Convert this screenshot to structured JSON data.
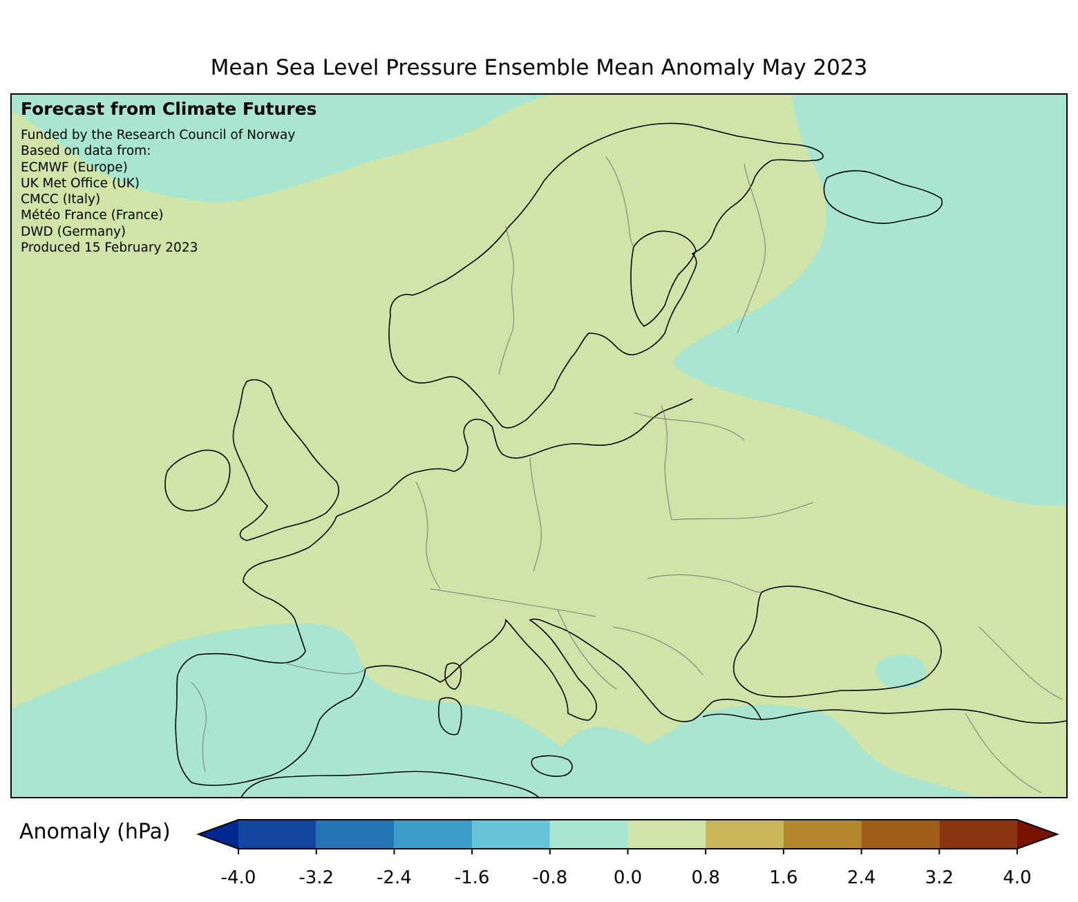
{
  "title": "Mean Sea Level Pressure Ensemble Mean Anomaly May 2023",
  "info_box": {
    "heading": "Forecast from Climate Futures",
    "lines": [
      "Funded by the Research Council of Norway",
      "Based on data from:",
      "ECMWF (Europe)",
      "UK Met Office (UK)",
      "CMCC (Italy)",
      "Météo France (France)",
      "DWD (Germany)",
      "Produced 15 February 2023"
    ]
  },
  "map": {
    "region": "Europe",
    "field": "Mean sea level pressure anomaly",
    "colors": {
      "land_background": "#d0e4a8",
      "anomaly_0_to_0_8": "#d0e4a8",
      "anomaly_neg0_8_to_0": "#a8e6d2",
      "coastline": "#000000",
      "borders": "#808080"
    }
  },
  "colorbar": {
    "label": "Anomaly (hPa)",
    "ticks": [
      "-4.0",
      "-3.2",
      "-2.4",
      "-1.6",
      "-0.8",
      "0.0",
      "0.8",
      "1.6",
      "2.4",
      "3.2",
      "4.0"
    ],
    "bins": [
      {
        "from": -4.0,
        "to": -3.2,
        "color": "#1446a0"
      },
      {
        "from": -3.2,
        "to": -2.4,
        "color": "#2474b6"
      },
      {
        "from": -2.4,
        "to": -1.6,
        "color": "#3c9ec8"
      },
      {
        "from": -1.6,
        "to": -0.8,
        "color": "#66c4d6"
      },
      {
        "from": -0.8,
        "to": 0.0,
        "color": "#a8e6d2"
      },
      {
        "from": 0.0,
        "to": 0.8,
        "color": "#d0e4a8"
      },
      {
        "from": 0.8,
        "to": 1.6,
        "color": "#c8b65a"
      },
      {
        "from": 1.6,
        "to": 2.4,
        "color": "#b2882e"
      },
      {
        "from": 2.4,
        "to": 3.2,
        "color": "#a05e1a"
      },
      {
        "from": 3.2,
        "to": 4.0,
        "color": "#883410"
      }
    ],
    "extend_low_color": "#002a92",
    "extend_high_color": "#7a1200"
  }
}
